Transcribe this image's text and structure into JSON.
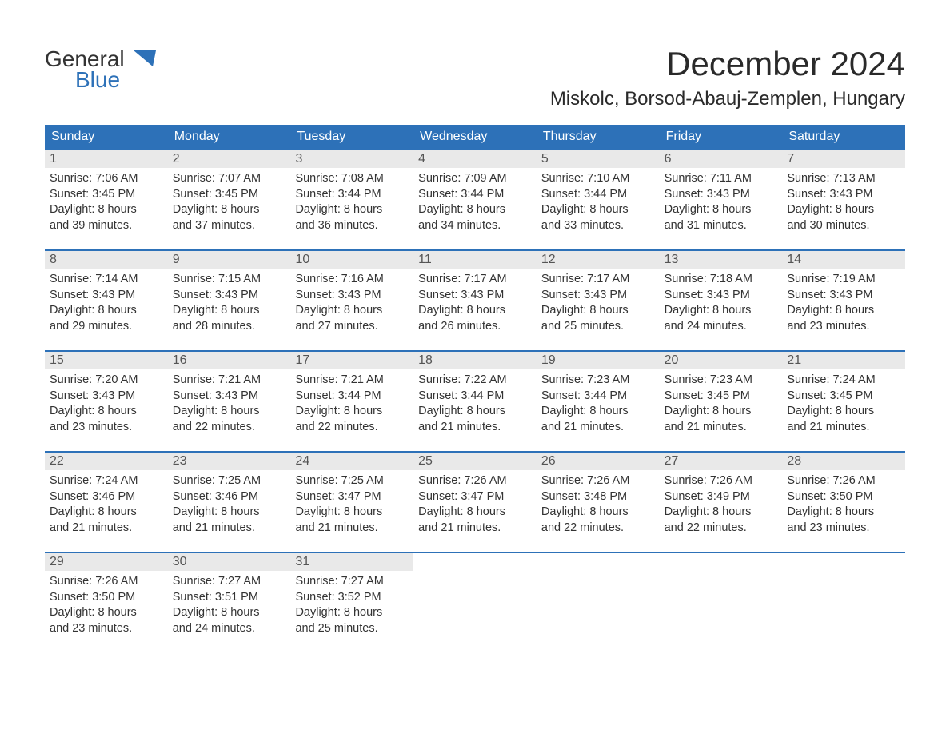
{
  "logo": {
    "line1": "General",
    "line2": "Blue",
    "triangle_color": "#2d71b8"
  },
  "title": "December 2024",
  "location": "Miskolc, Borsod-Abauj-Zemplen, Hungary",
  "day_names": [
    "Sunday",
    "Monday",
    "Tuesday",
    "Wednesday",
    "Thursday",
    "Friday",
    "Saturday"
  ],
  "colors": {
    "header_bg": "#2d71b8",
    "header_text": "#ffffff",
    "week_border": "#2d71b8",
    "daynum_bg": "#e9e9e9",
    "daynum_text": "#555555",
    "body_text": "#333333",
    "page_bg": "#ffffff"
  },
  "weeks": [
    [
      {
        "n": "1",
        "sunrise": "Sunrise: 7:06 AM",
        "sunset": "Sunset: 3:45 PM",
        "d1": "Daylight: 8 hours",
        "d2": "and 39 minutes."
      },
      {
        "n": "2",
        "sunrise": "Sunrise: 7:07 AM",
        "sunset": "Sunset: 3:45 PM",
        "d1": "Daylight: 8 hours",
        "d2": "and 37 minutes."
      },
      {
        "n": "3",
        "sunrise": "Sunrise: 7:08 AM",
        "sunset": "Sunset: 3:44 PM",
        "d1": "Daylight: 8 hours",
        "d2": "and 36 minutes."
      },
      {
        "n": "4",
        "sunrise": "Sunrise: 7:09 AM",
        "sunset": "Sunset: 3:44 PM",
        "d1": "Daylight: 8 hours",
        "d2": "and 34 minutes."
      },
      {
        "n": "5",
        "sunrise": "Sunrise: 7:10 AM",
        "sunset": "Sunset: 3:44 PM",
        "d1": "Daylight: 8 hours",
        "d2": "and 33 minutes."
      },
      {
        "n": "6",
        "sunrise": "Sunrise: 7:11 AM",
        "sunset": "Sunset: 3:43 PM",
        "d1": "Daylight: 8 hours",
        "d2": "and 31 minutes."
      },
      {
        "n": "7",
        "sunrise": "Sunrise: 7:13 AM",
        "sunset": "Sunset: 3:43 PM",
        "d1": "Daylight: 8 hours",
        "d2": "and 30 minutes."
      }
    ],
    [
      {
        "n": "8",
        "sunrise": "Sunrise: 7:14 AM",
        "sunset": "Sunset: 3:43 PM",
        "d1": "Daylight: 8 hours",
        "d2": "and 29 minutes."
      },
      {
        "n": "9",
        "sunrise": "Sunrise: 7:15 AM",
        "sunset": "Sunset: 3:43 PM",
        "d1": "Daylight: 8 hours",
        "d2": "and 28 minutes."
      },
      {
        "n": "10",
        "sunrise": "Sunrise: 7:16 AM",
        "sunset": "Sunset: 3:43 PM",
        "d1": "Daylight: 8 hours",
        "d2": "and 27 minutes."
      },
      {
        "n": "11",
        "sunrise": "Sunrise: 7:17 AM",
        "sunset": "Sunset: 3:43 PM",
        "d1": "Daylight: 8 hours",
        "d2": "and 26 minutes."
      },
      {
        "n": "12",
        "sunrise": "Sunrise: 7:17 AM",
        "sunset": "Sunset: 3:43 PM",
        "d1": "Daylight: 8 hours",
        "d2": "and 25 minutes."
      },
      {
        "n": "13",
        "sunrise": "Sunrise: 7:18 AM",
        "sunset": "Sunset: 3:43 PM",
        "d1": "Daylight: 8 hours",
        "d2": "and 24 minutes."
      },
      {
        "n": "14",
        "sunrise": "Sunrise: 7:19 AM",
        "sunset": "Sunset: 3:43 PM",
        "d1": "Daylight: 8 hours",
        "d2": "and 23 minutes."
      }
    ],
    [
      {
        "n": "15",
        "sunrise": "Sunrise: 7:20 AM",
        "sunset": "Sunset: 3:43 PM",
        "d1": "Daylight: 8 hours",
        "d2": "and 23 minutes."
      },
      {
        "n": "16",
        "sunrise": "Sunrise: 7:21 AM",
        "sunset": "Sunset: 3:43 PM",
        "d1": "Daylight: 8 hours",
        "d2": "and 22 minutes."
      },
      {
        "n": "17",
        "sunrise": "Sunrise: 7:21 AM",
        "sunset": "Sunset: 3:44 PM",
        "d1": "Daylight: 8 hours",
        "d2": "and 22 minutes."
      },
      {
        "n": "18",
        "sunrise": "Sunrise: 7:22 AM",
        "sunset": "Sunset: 3:44 PM",
        "d1": "Daylight: 8 hours",
        "d2": "and 21 minutes."
      },
      {
        "n": "19",
        "sunrise": "Sunrise: 7:23 AM",
        "sunset": "Sunset: 3:44 PM",
        "d1": "Daylight: 8 hours",
        "d2": "and 21 minutes."
      },
      {
        "n": "20",
        "sunrise": "Sunrise: 7:23 AM",
        "sunset": "Sunset: 3:45 PM",
        "d1": "Daylight: 8 hours",
        "d2": "and 21 minutes."
      },
      {
        "n": "21",
        "sunrise": "Sunrise: 7:24 AM",
        "sunset": "Sunset: 3:45 PM",
        "d1": "Daylight: 8 hours",
        "d2": "and 21 minutes."
      }
    ],
    [
      {
        "n": "22",
        "sunrise": "Sunrise: 7:24 AM",
        "sunset": "Sunset: 3:46 PM",
        "d1": "Daylight: 8 hours",
        "d2": "and 21 minutes."
      },
      {
        "n": "23",
        "sunrise": "Sunrise: 7:25 AM",
        "sunset": "Sunset: 3:46 PM",
        "d1": "Daylight: 8 hours",
        "d2": "and 21 minutes."
      },
      {
        "n": "24",
        "sunrise": "Sunrise: 7:25 AM",
        "sunset": "Sunset: 3:47 PM",
        "d1": "Daylight: 8 hours",
        "d2": "and 21 minutes."
      },
      {
        "n": "25",
        "sunrise": "Sunrise: 7:26 AM",
        "sunset": "Sunset: 3:47 PM",
        "d1": "Daylight: 8 hours",
        "d2": "and 21 minutes."
      },
      {
        "n": "26",
        "sunrise": "Sunrise: 7:26 AM",
        "sunset": "Sunset: 3:48 PM",
        "d1": "Daylight: 8 hours",
        "d2": "and 22 minutes."
      },
      {
        "n": "27",
        "sunrise": "Sunrise: 7:26 AM",
        "sunset": "Sunset: 3:49 PM",
        "d1": "Daylight: 8 hours",
        "d2": "and 22 minutes."
      },
      {
        "n": "28",
        "sunrise": "Sunrise: 7:26 AM",
        "sunset": "Sunset: 3:50 PM",
        "d1": "Daylight: 8 hours",
        "d2": "and 23 minutes."
      }
    ],
    [
      {
        "n": "29",
        "sunrise": "Sunrise: 7:26 AM",
        "sunset": "Sunset: 3:50 PM",
        "d1": "Daylight: 8 hours",
        "d2": "and 23 minutes."
      },
      {
        "n": "30",
        "sunrise": "Sunrise: 7:27 AM",
        "sunset": "Sunset: 3:51 PM",
        "d1": "Daylight: 8 hours",
        "d2": "and 24 minutes."
      },
      {
        "n": "31",
        "sunrise": "Sunrise: 7:27 AM",
        "sunset": "Sunset: 3:52 PM",
        "d1": "Daylight: 8 hours",
        "d2": "and 25 minutes."
      },
      null,
      null,
      null,
      null
    ]
  ]
}
